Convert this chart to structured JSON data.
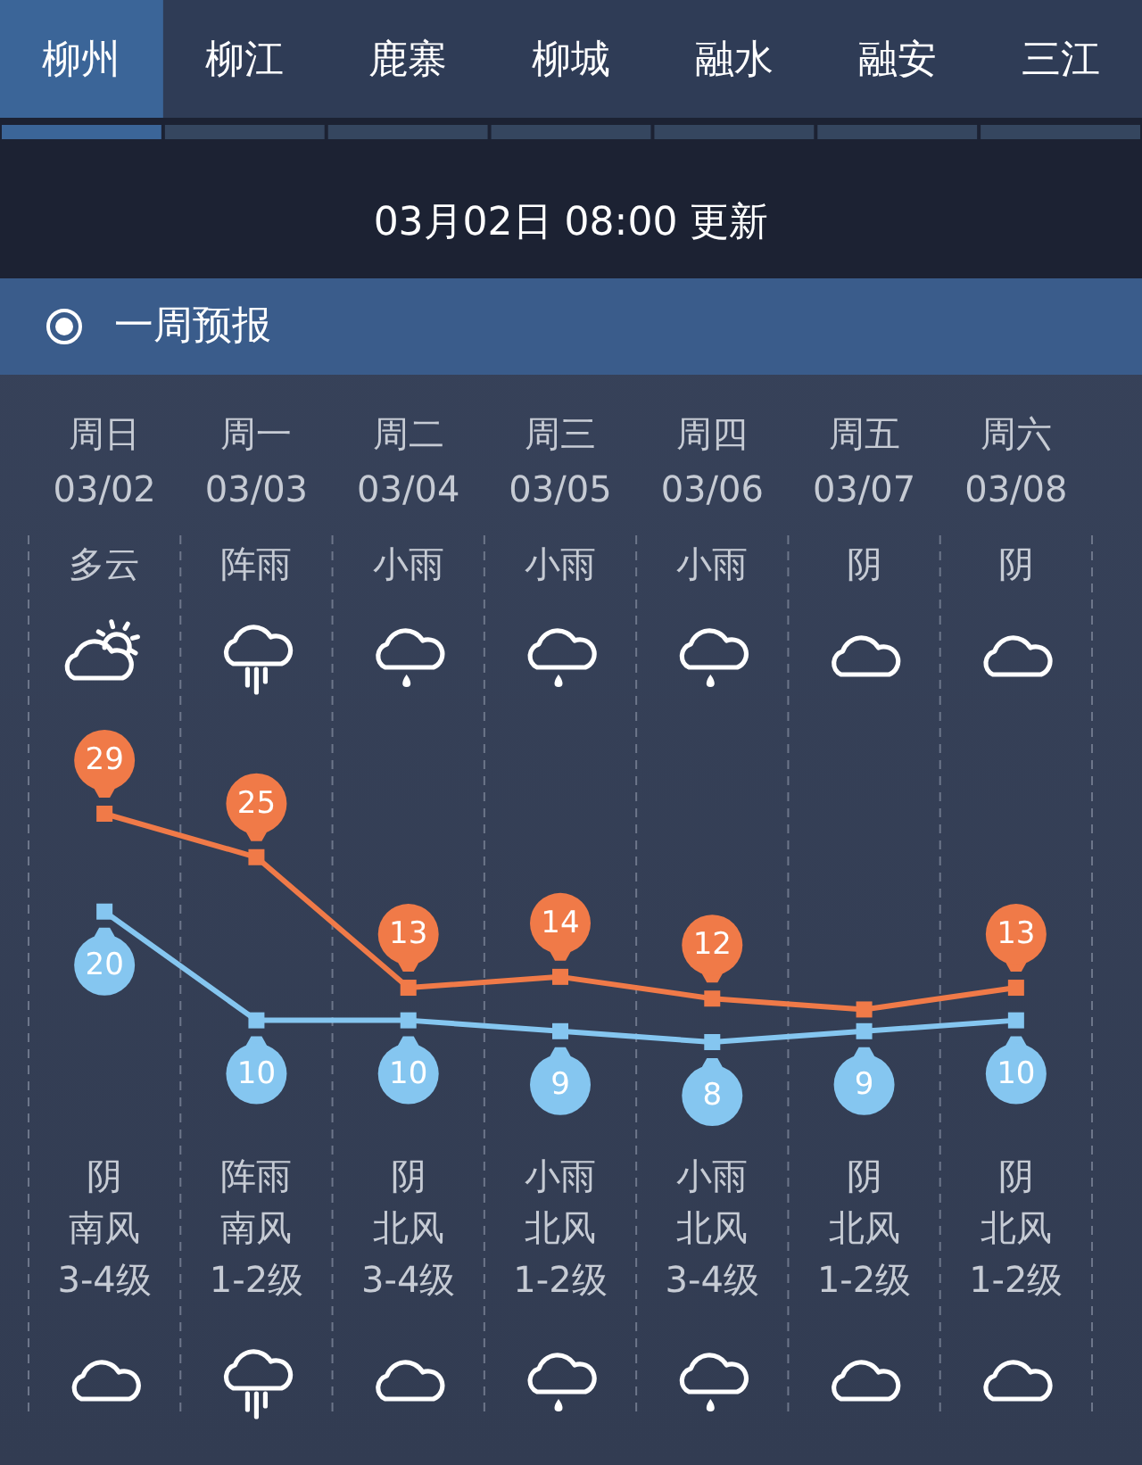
{
  "chart_data": {
    "type": "line",
    "title": "一周预报",
    "subtitle": "03月02日 08:00 更新",
    "categories": [
      "周日\n03/02",
      "周一\n03/03",
      "周二\n03/04",
      "周三\n03/05",
      "周四\n03/06",
      "周五\n03/07",
      "周六\n03/08"
    ],
    "series": [
      {
        "color": "#f07a48",
        "marker": "square",
        "values": [
          29,
          25,
          13,
          14,
          12,
          11,
          13
        ],
        "value_labels": [
          "29",
          "25",
          "13",
          "14",
          "12",
          null,
          "13"
        ]
      },
      {
        "color": "#85c6f0",
        "marker": "square",
        "values": [
          20,
          10,
          10,
          9,
          8,
          9,
          10
        ],
        "value_labels": [
          "20",
          "10",
          "10",
          "9",
          "8",
          "9",
          "10"
        ]
      }
    ],
    "grid": "x",
    "annotations": [
      "柳州",
      "柳江",
      "鹿寨",
      "柳城",
      "融水",
      "融安",
      "三江",
      "多云",
      "阵雨",
      "小雨",
      "小雨",
      "小雨",
      "阴",
      "阴",
      "阴",
      "阵雨",
      "阴",
      "小雨",
      "小雨",
      "阴",
      "阴",
      "南风",
      "南风",
      "北风",
      "北风",
      "北风",
      "北风",
      "北风",
      "3-4级",
      "1-2级",
      "3-4级",
      "1-2级",
      "3-4级",
      "1-2级",
      "1-2级"
    ]
  }
}
